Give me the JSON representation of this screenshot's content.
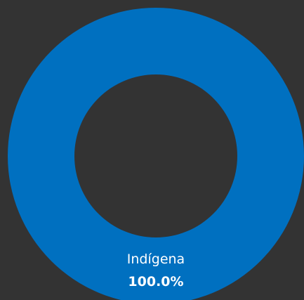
{
  "chart_data": {
    "type": "donut",
    "categories": [
      "Indígena"
    ],
    "values": [
      100
    ],
    "value_labels": [
      "100.0%"
    ],
    "colors": [
      "#0070c0"
    ]
  }
}
